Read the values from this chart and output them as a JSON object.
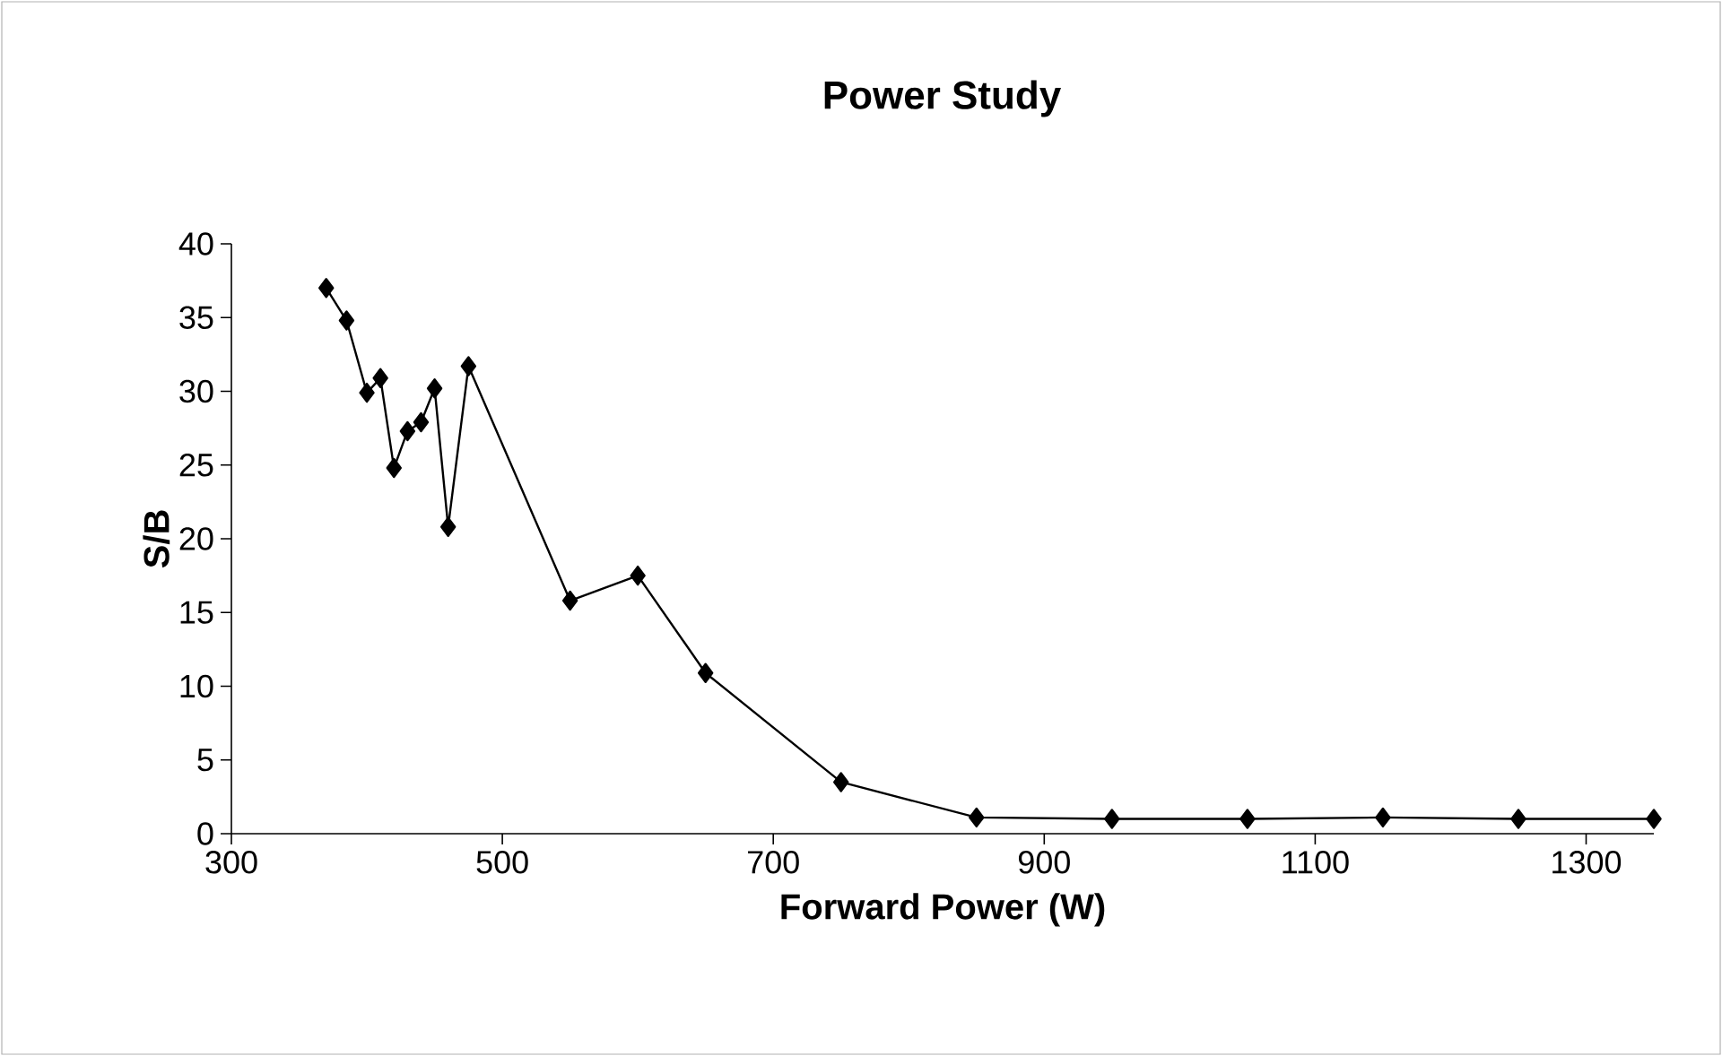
{
  "chart_data": {
    "type": "line",
    "title": "Power Study",
    "xlabel": "Forward Power (W)",
    "ylabel": "S/B",
    "x": [
      370,
      385,
      400,
      410,
      420,
      430,
      440,
      450,
      460,
      475,
      550,
      600,
      650,
      750,
      850,
      950,
      1050,
      1150,
      1250,
      1350
    ],
    "series": [
      {
        "color": "#000000",
        "values": [
          37.0,
          34.8,
          29.9,
          30.9,
          24.8,
          27.3,
          27.9,
          30.2,
          20.8,
          31.7,
          15.8,
          17.5,
          10.9,
          3.5,
          1.1,
          1.0,
          1.0,
          1.1,
          1.0,
          1.0
        ]
      }
    ],
    "xlim": [
      300,
      1350
    ],
    "ylim": [
      0,
      40
    ],
    "xticks": [
      300,
      500,
      700,
      900,
      1100,
      1300
    ],
    "yticks": [
      0,
      5,
      10,
      15,
      20,
      25,
      30,
      35,
      40
    ],
    "marker": "diamond",
    "line_style": "solid",
    "grid": false
  }
}
